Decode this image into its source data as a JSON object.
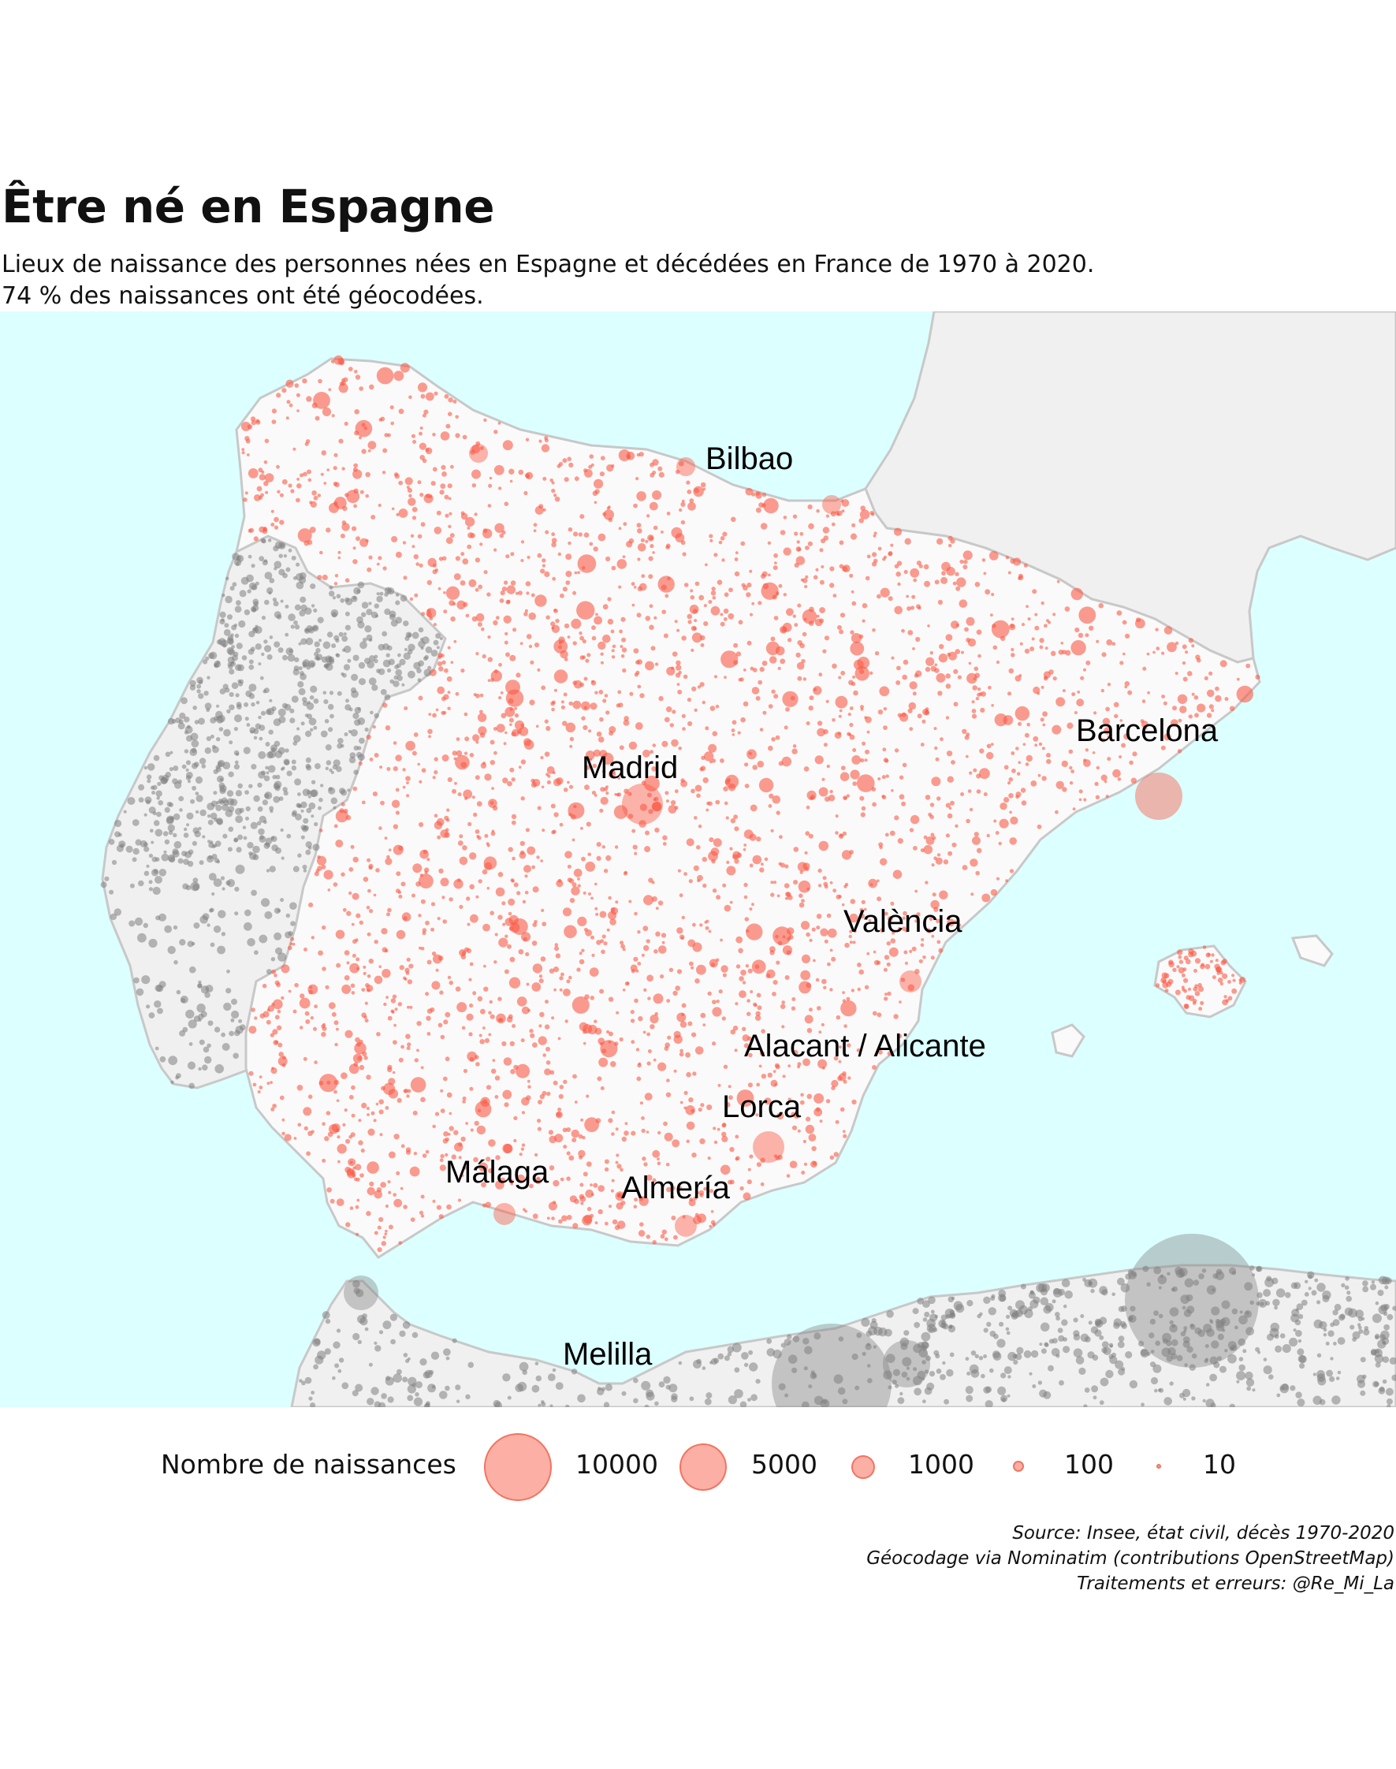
{
  "header": {
    "title": "Être né en Espagne",
    "subtitle_line1": "Lieux de naissance des personnes nées en Espagne et décédées en France de 1970 à 2020.",
    "subtitle_line2": "74 % des naissances ont été géocodées."
  },
  "map": {
    "colors": {
      "sea": "#dcffff",
      "spain_land": "#fafafa",
      "other_land": "#f0f0f0",
      "border": "#c8c8c8",
      "spain_points": "#fa5a46",
      "other_points": "#808080"
    },
    "cities": [
      {
        "name": "Bilbao"
      },
      {
        "name": "Barcelona"
      },
      {
        "name": "Madrid"
      },
      {
        "name": "València"
      },
      {
        "name": "Alacant / Alicante"
      },
      {
        "name": "Lorca"
      },
      {
        "name": "Málaga"
      },
      {
        "name": "Almería"
      },
      {
        "name": "Melilla"
      }
    ]
  },
  "legend": {
    "title": "Nombre de naissances",
    "items": [
      {
        "label": "10000",
        "value": 10000
      },
      {
        "label": "5000",
        "value": 5000
      },
      {
        "label": "1000",
        "value": 1000
      },
      {
        "label": "100",
        "value": 100
      },
      {
        "label": "10",
        "value": 10
      }
    ]
  },
  "source": {
    "line1": "Source: Insee, état civil, décès 1970-2020",
    "line2": "Géocodage via Nominatim (contributions OpenStreetMap)",
    "line3": "Traitements et erreurs: @Re_Mi_La"
  }
}
